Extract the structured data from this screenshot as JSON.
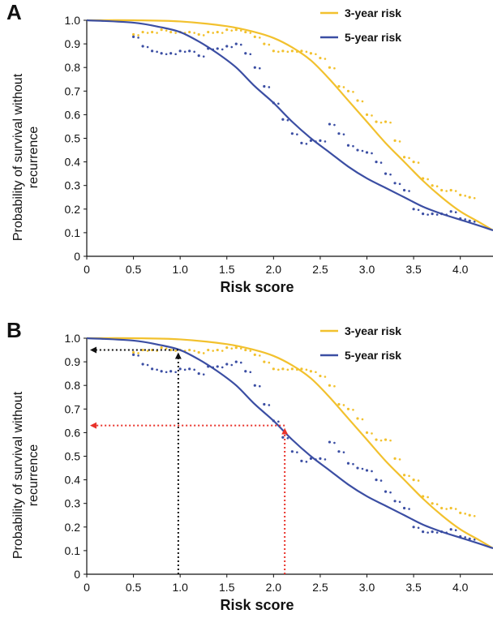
{
  "chart_data": [
    {
      "panel": "A",
      "type": "line",
      "title": "",
      "ylabel": "Probability of survival without recurrence",
      "xlabel": "Risk score",
      "xlim": [
        0,
        4.35
      ],
      "ylim": [
        0,
        1.0
      ],
      "xticks": [
        "0",
        "0.5",
        "1.0",
        "1.5",
        "2.0",
        "2.5",
        "3.0",
        "3.5",
        "4.0"
      ],
      "yticks": [
        "0",
        "0.1",
        "0.2",
        "0.3",
        "0.4",
        "0.5",
        "0.6",
        "0.7",
        "0.8",
        "0.9",
        "1.0"
      ],
      "grid": false,
      "legend_position": "top-right",
      "series": [
        {
          "name": "3-year risk",
          "color": "#f2c12e",
          "x": [
            0,
            0.5,
            1.0,
            1.5,
            1.8,
            2.0,
            2.2,
            2.4,
            2.6,
            2.8,
            3.0,
            3.2,
            3.4,
            3.6,
            3.8,
            4.0,
            4.2,
            4.35
          ],
          "y": [
            1.0,
            1.0,
            0.995,
            0.975,
            0.95,
            0.925,
            0.885,
            0.83,
            0.75,
            0.66,
            0.57,
            0.48,
            0.4,
            0.32,
            0.25,
            0.19,
            0.145,
            0.11
          ]
        },
        {
          "name": "5-year risk",
          "color": "#3b4ea3",
          "x": [
            0,
            0.5,
            0.8,
            1.0,
            1.2,
            1.4,
            1.6,
            1.8,
            2.0,
            2.2,
            2.4,
            2.6,
            2.8,
            3.0,
            3.2,
            3.4,
            3.6,
            3.8,
            4.0,
            4.2,
            4.35
          ],
          "y": [
            1.0,
            0.99,
            0.97,
            0.95,
            0.91,
            0.86,
            0.8,
            0.72,
            0.65,
            0.57,
            0.5,
            0.44,
            0.38,
            0.33,
            0.29,
            0.25,
            0.21,
            0.18,
            0.155,
            0.13,
            0.11
          ]
        }
      ],
      "scatter": [
        {
          "series": "3-year risk",
          "color": "#f2c12e",
          "x": [
            0.5,
            0.6,
            0.7,
            0.8,
            0.9,
            1.0,
            1.1,
            1.2,
            1.3,
            1.4,
            1.5,
            1.6,
            1.7,
            1.8,
            1.9,
            2.0,
            2.1,
            2.2,
            2.3,
            2.4,
            2.5,
            2.6,
            2.7,
            2.8,
            2.9,
            3.0,
            3.1,
            3.2,
            3.3,
            3.4,
            3.5,
            3.6,
            3.7,
            3.8,
            3.9,
            4.0,
            4.1
          ],
          "y": [
            0.94,
            0.95,
            0.95,
            0.96,
            0.95,
            0.95,
            0.95,
            0.94,
            0.95,
            0.95,
            0.96,
            0.96,
            0.95,
            0.93,
            0.9,
            0.87,
            0.87,
            0.87,
            0.87,
            0.86,
            0.84,
            0.8,
            0.72,
            0.7,
            0.66,
            0.6,
            0.57,
            0.57,
            0.49,
            0.42,
            0.4,
            0.33,
            0.3,
            0.28,
            0.28,
            0.26,
            0.25
          ]
        },
        {
          "series": "5-year risk",
          "color": "#3b4ea3",
          "x": [
            0.5,
            0.6,
            0.7,
            0.8,
            0.9,
            1.0,
            1.1,
            1.2,
            1.3,
            1.4,
            1.5,
            1.6,
            1.7,
            1.8,
            1.9,
            2.0,
            2.1,
            2.2,
            2.3,
            2.4,
            2.5,
            2.6,
            2.7,
            2.8,
            2.9,
            3.0,
            3.1,
            3.2,
            3.3,
            3.4,
            3.5,
            3.6,
            3.7,
            3.8,
            3.9,
            4.0,
            4.1
          ],
          "y": [
            0.93,
            0.89,
            0.87,
            0.86,
            0.86,
            0.87,
            0.87,
            0.85,
            0.88,
            0.88,
            0.89,
            0.9,
            0.86,
            0.8,
            0.72,
            0.65,
            0.58,
            0.52,
            0.48,
            0.49,
            0.49,
            0.56,
            0.52,
            0.47,
            0.45,
            0.44,
            0.4,
            0.35,
            0.31,
            0.28,
            0.2,
            0.18,
            0.18,
            0.18,
            0.19,
            0.16,
            0.15
          ]
        }
      ]
    },
    {
      "panel": "B",
      "type": "line",
      "title": "",
      "ylabel": "Probability of survival without recurrence",
      "xlabel": "Risk score",
      "xlim": [
        0,
        4.35
      ],
      "ylim": [
        0,
        1.0
      ],
      "xticks": [
        "0",
        "0.5",
        "1.0",
        "1.5",
        "2.0",
        "2.5",
        "3.0",
        "3.5",
        "4.0"
      ],
      "yticks": [
        "0",
        "0.1",
        "0.2",
        "0.3",
        "0.4",
        "0.5",
        "0.6",
        "0.7",
        "0.8",
        "0.9",
        "1.0"
      ],
      "grid": false,
      "legend_position": "top-right",
      "series": [
        {
          "name": "3-year risk",
          "color": "#f2c12e",
          "x": [
            0,
            0.5,
            1.0,
            1.5,
            1.8,
            2.0,
            2.2,
            2.4,
            2.6,
            2.8,
            3.0,
            3.2,
            3.4,
            3.6,
            3.8,
            4.0,
            4.2,
            4.35
          ],
          "y": [
            1.0,
            1.0,
            0.995,
            0.975,
            0.95,
            0.925,
            0.885,
            0.83,
            0.75,
            0.66,
            0.57,
            0.48,
            0.4,
            0.32,
            0.25,
            0.19,
            0.145,
            0.11
          ]
        },
        {
          "name": "5-year risk",
          "color": "#3b4ea3",
          "x": [
            0,
            0.5,
            0.8,
            1.0,
            1.2,
            1.4,
            1.6,
            1.8,
            2.0,
            2.2,
            2.4,
            2.6,
            2.8,
            3.0,
            3.2,
            3.4,
            3.6,
            3.8,
            4.0,
            4.2,
            4.35
          ],
          "y": [
            1.0,
            0.99,
            0.97,
            0.95,
            0.91,
            0.86,
            0.8,
            0.72,
            0.65,
            0.57,
            0.5,
            0.44,
            0.38,
            0.33,
            0.29,
            0.25,
            0.21,
            0.18,
            0.155,
            0.13,
            0.11
          ]
        }
      ],
      "scatter": [
        {
          "series": "3-year risk",
          "color": "#f2c12e",
          "x": [
            0.5,
            0.6,
            0.7,
            0.8,
            0.9,
            1.0,
            1.1,
            1.2,
            1.3,
            1.4,
            1.5,
            1.6,
            1.7,
            1.8,
            1.9,
            2.0,
            2.1,
            2.2,
            2.3,
            2.4,
            2.5,
            2.6,
            2.7,
            2.8,
            2.9,
            3.0,
            3.1,
            3.2,
            3.3,
            3.4,
            3.5,
            3.6,
            3.7,
            3.8,
            3.9,
            4.0,
            4.1
          ],
          "y": [
            0.94,
            0.95,
            0.95,
            0.96,
            0.95,
            0.95,
            0.95,
            0.94,
            0.95,
            0.95,
            0.96,
            0.96,
            0.95,
            0.93,
            0.9,
            0.87,
            0.87,
            0.87,
            0.87,
            0.86,
            0.84,
            0.8,
            0.72,
            0.7,
            0.66,
            0.6,
            0.57,
            0.57,
            0.49,
            0.42,
            0.4,
            0.33,
            0.3,
            0.28,
            0.28,
            0.26,
            0.25
          ]
        },
        {
          "series": "5-year risk",
          "color": "#3b4ea3",
          "x": [
            0.5,
            0.6,
            0.7,
            0.8,
            0.9,
            1.0,
            1.1,
            1.2,
            1.3,
            1.4,
            1.5,
            1.6,
            1.7,
            1.8,
            1.9,
            2.0,
            2.1,
            2.2,
            2.3,
            2.4,
            2.5,
            2.6,
            2.7,
            2.8,
            2.9,
            3.0,
            3.1,
            3.2,
            3.3,
            3.4,
            3.5,
            3.6,
            3.7,
            3.8,
            3.9,
            4.0,
            4.1
          ],
          "y": [
            0.93,
            0.89,
            0.87,
            0.86,
            0.86,
            0.87,
            0.87,
            0.85,
            0.88,
            0.88,
            0.89,
            0.9,
            0.86,
            0.8,
            0.72,
            0.65,
            0.58,
            0.52,
            0.48,
            0.49,
            0.49,
            0.56,
            0.52,
            0.47,
            0.45,
            0.44,
            0.4,
            0.35,
            0.31,
            0.28,
            0.2,
            0.18,
            0.18,
            0.18,
            0.19,
            0.16,
            0.15
          ]
        }
      ],
      "annotations": [
        {
          "color": "#111111",
          "x": 0.98,
          "y": 0.95
        },
        {
          "color": "#e8322a",
          "x": 2.12,
          "y": 0.63
        }
      ]
    }
  ]
}
